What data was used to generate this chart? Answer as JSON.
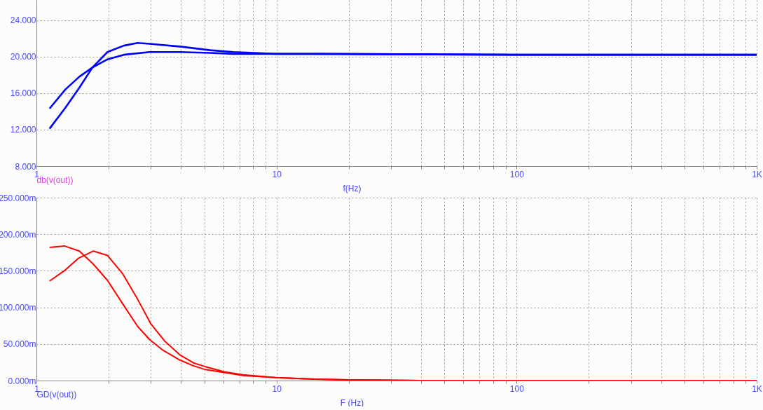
{
  "chart_data": [
    {
      "type": "line",
      "xlabel": "f(Hz)",
      "annotations": [
        "db(v(out))"
      ],
      "log": "x",
      "grid": true,
      "xlim": [
        1,
        1000
      ],
      "xticks": [
        1,
        {
          "value": 2,
          "label": null
        },
        {
          "value": 3,
          "label": null
        },
        {
          "value": 4,
          "label": null
        },
        {
          "value": 5,
          "label": null
        },
        {
          "value": 6,
          "label": null
        },
        {
          "value": 7,
          "label": null
        },
        {
          "value": 8,
          "label": null
        },
        {
          "value": 9,
          "label": null
        },
        10,
        {
          "value": 20,
          "label": null
        },
        {
          "value": 30,
          "label": null
        },
        {
          "value": 40,
          "label": null
        },
        {
          "value": 50,
          "label": null
        },
        {
          "value": 60,
          "label": null
        },
        {
          "value": 70,
          "label": null
        },
        {
          "value": 80,
          "label": null
        },
        {
          "value": 90,
          "label": null
        },
        100,
        {
          "value": 200,
          "label": null
        },
        {
          "value": 300,
          "label": null
        },
        {
          "value": 400,
          "label": null
        },
        {
          "value": 500,
          "label": null
        },
        {
          "value": 600,
          "label": null
        },
        {
          "value": 700,
          "label": null
        },
        {
          "value": 800,
          "label": null
        },
        {
          "value": 900,
          "label": null
        },
        {
          "value": 1000,
          "label": "1K"
        }
      ],
      "ylim": [
        8,
        26.2
      ],
      "yticks": [
        {
          "value": 8,
          "label": "8.000"
        },
        {
          "value": 12,
          "label": "12.000"
        },
        {
          "value": 16,
          "label": "16.000"
        },
        {
          "value": 20,
          "label": "20.000"
        },
        {
          "value": 24,
          "label": "24.000"
        }
      ],
      "series": [
        {
          "color": "#0000ff",
          "x": [
            1.134,
            1.32,
            1.51,
            1.71,
            1.976,
            2.31,
            2.96,
            3.96,
            5.29,
            6.62,
            9.91,
            14.5,
            100,
            1000
          ],
          "values": [
            14.3,
            16.4,
            17.8,
            18.8,
            19.7,
            20.2,
            20.5,
            20.5,
            20.4,
            20.3,
            20.3,
            20.3,
            20.2,
            20.2
          ]
        },
        {
          "color": "#0000ff",
          "x": [
            1.134,
            1.32,
            1.51,
            1.71,
            1.976,
            2.31,
            2.64,
            2.96,
            3.96,
            5.29,
            6.62,
            9.91,
            14.5,
            100,
            1000
          ],
          "values": [
            12.1,
            14.4,
            16.6,
            18.8,
            20.5,
            21.2,
            21.5,
            21.4,
            21.1,
            20.7,
            20.5,
            20.3,
            20.3,
            20.2,
            20.2
          ]
        }
      ]
    },
    {
      "type": "line",
      "xlabel": "F (Hz)",
      "annotations": [
        "GD(v(out))"
      ],
      "log": "x",
      "grid": true,
      "xlim": [
        1,
        1000
      ],
      "xticks": [
        1,
        {
          "value": 2,
          "label": null
        },
        {
          "value": 3,
          "label": null
        },
        {
          "value": 4,
          "label": null
        },
        {
          "value": 5,
          "label": null
        },
        {
          "value": 6,
          "label": null
        },
        {
          "value": 7,
          "label": null
        },
        {
          "value": 8,
          "label": null
        },
        {
          "value": 9,
          "label": null
        },
        10,
        {
          "value": 20,
          "label": null
        },
        {
          "value": 30,
          "label": null
        },
        {
          "value": 40,
          "label": null
        },
        {
          "value": 50,
          "label": null
        },
        {
          "value": 60,
          "label": null
        },
        {
          "value": 70,
          "label": null
        },
        {
          "value": 80,
          "label": null
        },
        {
          "value": 90,
          "label": null
        },
        100,
        {
          "value": 200,
          "label": null
        },
        {
          "value": 300,
          "label": null
        },
        {
          "value": 400,
          "label": null
        },
        {
          "value": 500,
          "label": null
        },
        {
          "value": 600,
          "label": null
        },
        {
          "value": 700,
          "label": null
        },
        {
          "value": 800,
          "label": null
        },
        {
          "value": 900,
          "label": null
        },
        {
          "value": 1000,
          "label": "1K"
        }
      ],
      "ylim": [
        0,
        250
      ],
      "yticks": [
        {
          "value": 0,
          "label": "0.000m"
        },
        {
          "value": 50,
          "label": "50.000m"
        },
        {
          "value": 100,
          "label": "100.000m"
        },
        {
          "value": 150,
          "label": "150.000m"
        },
        {
          "value": 200,
          "label": "200.000m"
        },
        {
          "value": 250,
          "label": "250.000m"
        }
      ],
      "series": [
        {
          "color": "#ff0000",
          "x": [
            1.134,
            1.306,
            1.51,
            1.727,
            1.976,
            2.286,
            2.64,
            2.96,
            3.38,
            3.96,
            4.52,
            5.06,
            6.05,
            7.24,
            9.91,
            14.5,
            20,
            40,
            100,
            1000
          ],
          "values": [
            182,
            184,
            177,
            159,
            137,
            105,
            74,
            56,
            41,
            28,
            20,
            15,
            11,
            7,
            4,
            2,
            1,
            0,
            0,
            0
          ]
        },
        {
          "color": "#ff0000",
          "x": [
            1.134,
            1.306,
            1.493,
            1.727,
            1.976,
            2.286,
            2.64,
            2.99,
            3.42,
            3.96,
            4.52,
            5.06,
            6.05,
            7.24,
            9.91,
            14.5,
            20,
            40,
            100,
            1000
          ],
          "values": [
            136,
            150,
            167,
            177,
            171,
            146,
            111,
            78,
            54,
            35,
            24,
            19,
            12,
            8,
            4,
            2,
            1,
            0,
            0,
            0
          ]
        }
      ]
    }
  ]
}
